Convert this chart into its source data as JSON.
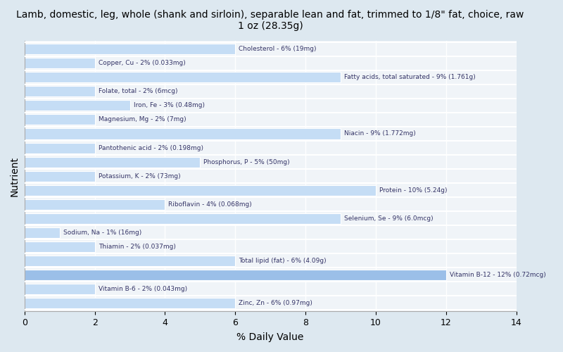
{
  "title": "Lamb, domestic, leg, whole (shank and sirloin), separable lean and fat, trimmed to 1/8\" fat, choice, raw\n1 oz (28.35g)",
  "xlabel": "% Daily Value",
  "ylabel": "Nutrient",
  "xlim": [
    0,
    14
  ],
  "xticks": [
    0,
    2,
    4,
    6,
    8,
    10,
    12,
    14
  ],
  "background_color": "#dde8f0",
  "plot_bg_color": "#f0f4f8",
  "bar_color_normal": "#c5ddf5",
  "bar_color_highlight": "#9bbfe8",
  "text_color": "#333366",
  "nutrients": [
    {
      "label": "Cholesterol - 6% (19mg)",
      "value": 6,
      "highlight": false
    },
    {
      "label": "Copper, Cu - 2% (0.033mg)",
      "value": 2,
      "highlight": false
    },
    {
      "label": "Fatty acids, total saturated - 9% (1.761g)",
      "value": 9,
      "highlight": false
    },
    {
      "label": "Folate, total - 2% (6mcg)",
      "value": 2,
      "highlight": false
    },
    {
      "label": "Iron, Fe - 3% (0.48mg)",
      "value": 3,
      "highlight": false
    },
    {
      "label": "Magnesium, Mg - 2% (7mg)",
      "value": 2,
      "highlight": false
    },
    {
      "label": "Niacin - 9% (1.772mg)",
      "value": 9,
      "highlight": false
    },
    {
      "label": "Pantothenic acid - 2% (0.198mg)",
      "value": 2,
      "highlight": false
    },
    {
      "label": "Phosphorus, P - 5% (50mg)",
      "value": 5,
      "highlight": false
    },
    {
      "label": "Potassium, K - 2% (73mg)",
      "value": 2,
      "highlight": false
    },
    {
      "label": "Protein - 10% (5.24g)",
      "value": 10,
      "highlight": false
    },
    {
      "label": "Riboflavin - 4% (0.068mg)",
      "value": 4,
      "highlight": false
    },
    {
      "label": "Selenium, Se - 9% (6.0mcg)",
      "value": 9,
      "highlight": false
    },
    {
      "label": "Sodium, Na - 1% (16mg)",
      "value": 1,
      "highlight": false
    },
    {
      "label": "Thiamin - 2% (0.037mg)",
      "value": 2,
      "highlight": false
    },
    {
      "label": "Total lipid (fat) - 6% (4.09g)",
      "value": 6,
      "highlight": false
    },
    {
      "label": "Vitamin B-12 - 12% (0.72mcg)",
      "value": 12,
      "highlight": true
    },
    {
      "label": "Vitamin B-6 - 2% (0.043mg)",
      "value": 2,
      "highlight": false
    },
    {
      "label": "Zinc, Zn - 6% (0.97mg)",
      "value": 6,
      "highlight": false
    }
  ]
}
